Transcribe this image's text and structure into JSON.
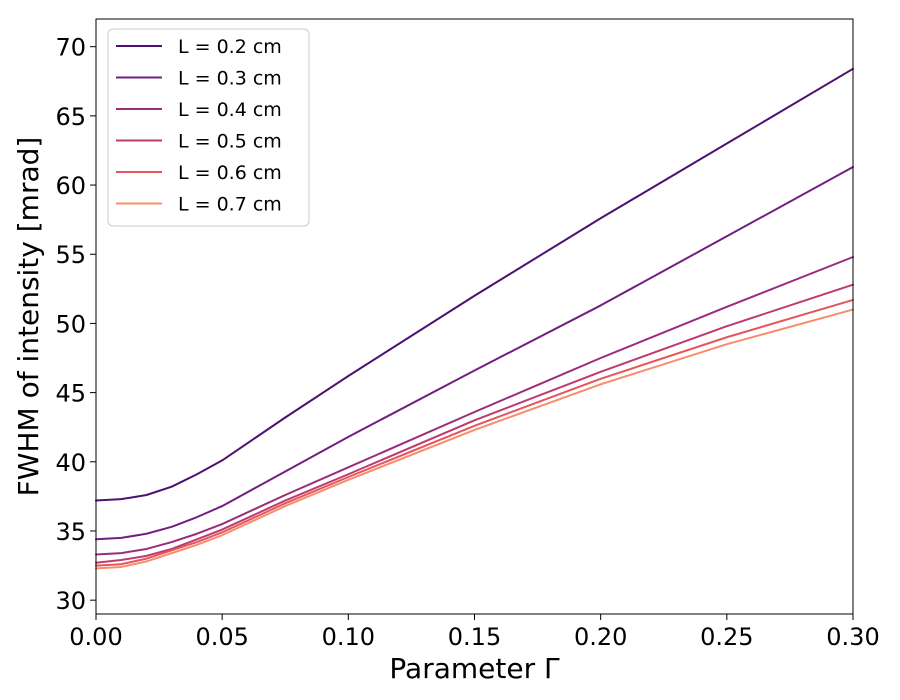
{
  "chart_data": {
    "type": "line",
    "title": "",
    "xlabel": "Parameter Γ",
    "ylabel": "FWHM of intensity [mrad]",
    "xlim": [
      0.0,
      0.3
    ],
    "ylim": [
      29.0,
      72.0
    ],
    "grid": false,
    "legend_position": "top-left",
    "xticks": [
      0.0,
      0.05,
      0.1,
      0.15,
      0.2,
      0.25,
      0.3
    ],
    "xtick_labels": [
      "0.00",
      "0.05",
      "0.10",
      "0.15",
      "0.20",
      "0.25",
      "0.30"
    ],
    "yticks": [
      30,
      35,
      40,
      45,
      50,
      55,
      60,
      65,
      70
    ],
    "ytick_labels": [
      "30",
      "35",
      "40",
      "45",
      "50",
      "55",
      "60",
      "65",
      "70"
    ],
    "x": [
      0.0,
      0.01,
      0.02,
      0.03,
      0.04,
      0.05,
      0.075,
      0.1,
      0.15,
      0.2,
      0.25,
      0.3
    ],
    "series": [
      {
        "name": "L = 0.2 cm",
        "color": "#4c1172",
        "values": [
          37.2,
          37.3,
          37.6,
          38.2,
          39.1,
          40.1,
          43.2,
          46.2,
          52.0,
          57.6,
          63.0,
          68.4
        ]
      },
      {
        "name": "L = 0.3 cm",
        "color": "#721f81",
        "values": [
          34.4,
          34.5,
          34.8,
          35.3,
          36.0,
          36.8,
          39.3,
          41.8,
          46.6,
          51.3,
          56.3,
          61.3
        ]
      },
      {
        "name": "L = 0.4 cm",
        "color": "#9a2c7c",
        "values": [
          33.3,
          33.4,
          33.7,
          34.2,
          34.8,
          35.5,
          37.6,
          39.6,
          43.6,
          47.5,
          51.2,
          54.8
        ]
      },
      {
        "name": "L = 0.5 cm",
        "color": "#bf3a6f",
        "values": [
          32.7,
          32.9,
          33.2,
          33.7,
          34.4,
          35.1,
          37.2,
          39.1,
          43.0,
          46.5,
          49.8,
          52.8
        ]
      },
      {
        "name": "L = 0.6 cm",
        "color": "#e4565c",
        "values": [
          32.5,
          32.6,
          33.0,
          33.6,
          34.2,
          34.9,
          37.0,
          38.9,
          42.6,
          46.0,
          49.0,
          51.7
        ]
      },
      {
        "name": "L = 0.7 cm",
        "color": "#f98c6a",
        "values": [
          32.3,
          32.4,
          32.8,
          33.4,
          34.0,
          34.7,
          36.8,
          38.7,
          42.3,
          45.6,
          48.5,
          51.0
        ]
      }
    ]
  }
}
